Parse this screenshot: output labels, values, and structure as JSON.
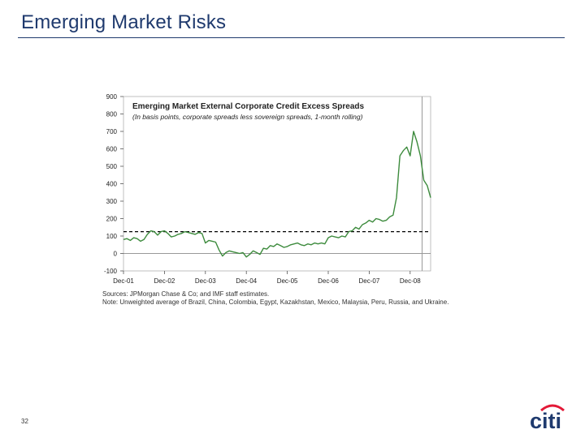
{
  "slide": {
    "title": "Emerging Market Risks",
    "page_number": "32",
    "logo_text": "citi"
  },
  "colors": {
    "title": "#1f3a6e",
    "series": "#3d8b3d",
    "threshold": "#000000",
    "marker": "#999999",
    "logo_text": "#1f3a6e",
    "logo_arc": "#e31937"
  },
  "chart_data": {
    "type": "line",
    "title": "Emerging Market External Corporate Credit Excess Spreads",
    "subtitle": "(In basis points, corporate spreads less sovereign spreads, 1-month rolling)",
    "xlabel": "",
    "ylabel": "",
    "ylim": [
      -100,
      900
    ],
    "yticks": [
      -100,
      0,
      100,
      200,
      300,
      400,
      500,
      600,
      700,
      800,
      900
    ],
    "x_ticks": [
      {
        "label": "Dec-01",
        "t": 0
      },
      {
        "label": "Dec-02",
        "t": 12
      },
      {
        "label": "Dec-03",
        "t": 24
      },
      {
        "label": "Dec-04",
        "t": 36
      },
      {
        "label": "Dec-05",
        "t": 48
      },
      {
        "label": "Dec-06",
        "t": 60
      },
      {
        "label": "Dec-07",
        "t": 72
      },
      {
        "label": "Dec-08",
        "t": 84
      }
    ],
    "xlim": [
      0,
      90
    ],
    "grid": false,
    "threshold_line": 125,
    "vertical_marker_t": 87.5,
    "series": [
      {
        "name": "",
        "points": [
          [
            0,
            80
          ],
          [
            1,
            85
          ],
          [
            2,
            75
          ],
          [
            3,
            90
          ],
          [
            4,
            85
          ],
          [
            5,
            70
          ],
          [
            6,
            80
          ],
          [
            7,
            110
          ],
          [
            8,
            130
          ],
          [
            9,
            125
          ],
          [
            10,
            105
          ],
          [
            11,
            125
          ],
          [
            12,
            130
          ],
          [
            13,
            115
          ],
          [
            14,
            95
          ],
          [
            15,
            100
          ],
          [
            16,
            110
          ],
          [
            17,
            115
          ],
          [
            18,
            125
          ],
          [
            19,
            120
          ],
          [
            20,
            115
          ],
          [
            21,
            110
          ],
          [
            22,
            120
          ],
          [
            23,
            115
          ],
          [
            24,
            60
          ],
          [
            25,
            75
          ],
          [
            26,
            70
          ],
          [
            27,
            65
          ],
          [
            28,
            20
          ],
          [
            29,
            -15
          ],
          [
            30,
            5
          ],
          [
            31,
            15
          ],
          [
            32,
            10
          ],
          [
            33,
            5
          ],
          [
            34,
            0
          ],
          [
            35,
            5
          ],
          [
            36,
            -20
          ],
          [
            37,
            -5
          ],
          [
            38,
            15
          ],
          [
            39,
            5
          ],
          [
            40,
            -5
          ],
          [
            41,
            30
          ],
          [
            42,
            25
          ],
          [
            43,
            45
          ],
          [
            44,
            40
          ],
          [
            45,
            55
          ],
          [
            46,
            45
          ],
          [
            47,
            35
          ],
          [
            48,
            40
          ],
          [
            49,
            50
          ],
          [
            50,
            55
          ],
          [
            51,
            60
          ],
          [
            52,
            50
          ],
          [
            53,
            45
          ],
          [
            54,
            55
          ],
          [
            55,
            50
          ],
          [
            56,
            60
          ],
          [
            57,
            55
          ],
          [
            58,
            60
          ],
          [
            59,
            55
          ],
          [
            60,
            90
          ],
          [
            61,
            100
          ],
          [
            62,
            95
          ],
          [
            63,
            90
          ],
          [
            64,
            100
          ],
          [
            65,
            95
          ],
          [
            66,
            125
          ],
          [
            67,
            130
          ],
          [
            68,
            150
          ],
          [
            69,
            140
          ],
          [
            70,
            165
          ],
          [
            71,
            175
          ],
          [
            72,
            190
          ],
          [
            73,
            180
          ],
          [
            74,
            200
          ],
          [
            75,
            195
          ],
          [
            76,
            185
          ],
          [
            77,
            190
          ],
          [
            78,
            210
          ],
          [
            79,
            220
          ],
          [
            80,
            320
          ],
          [
            81,
            560
          ],
          [
            82,
            590
          ],
          [
            83,
            610
          ],
          [
            84,
            560
          ],
          [
            85,
            700
          ],
          [
            86,
            640
          ],
          [
            87,
            560
          ],
          [
            88,
            420
          ],
          [
            89,
            390
          ],
          [
            90,
            320
          ]
        ]
      }
    ],
    "notes": [
      "Sources: JPMorgan Chase & Co; and IMF staff estimates.",
      "Note: Unweighted average of Brazil, China, Colombia, Egypt, Kazakhstan, Mexico, Malaysia, Peru, Russia, and Ukraine."
    ]
  }
}
